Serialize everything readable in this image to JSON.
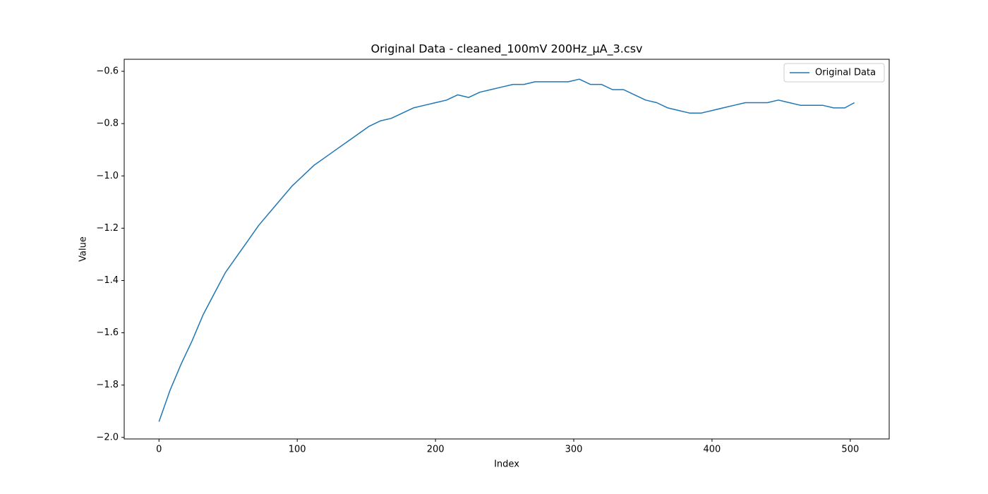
{
  "chart_data": {
    "type": "line",
    "title": "Original Data - cleaned_100mV 200Hz_µA_3.csv",
    "x_label": "Index",
    "y_label": "Value",
    "x": [
      0,
      8,
      16,
      24,
      32,
      40,
      48,
      56,
      64,
      72,
      80,
      88,
      96,
      104,
      112,
      120,
      128,
      136,
      144,
      152,
      160,
      168,
      176,
      184,
      192,
      200,
      208,
      216,
      224,
      232,
      240,
      248,
      256,
      264,
      272,
      280,
      288,
      296,
      304,
      312,
      320,
      328,
      336,
      344,
      352,
      360,
      368,
      376,
      384,
      392,
      400,
      408,
      416,
      424,
      432,
      440,
      448,
      456,
      464,
      472,
      480,
      488,
      496,
      503
    ],
    "series": [
      {
        "name": "Original Data",
        "color": "#1f77b4",
        "values": [
          -1.94,
          -1.82,
          -1.72,
          -1.63,
          -1.53,
          -1.45,
          -1.37,
          -1.31,
          -1.25,
          -1.19,
          -1.14,
          -1.09,
          -1.04,
          -1.0,
          -0.96,
          -0.93,
          -0.9,
          -0.87,
          -0.84,
          -0.81,
          -0.79,
          -0.78,
          -0.76,
          -0.74,
          -0.73,
          -0.72,
          -0.71,
          -0.69,
          -0.7,
          -0.68,
          -0.67,
          -0.66,
          -0.65,
          -0.65,
          -0.64,
          -0.64,
          -0.64,
          -0.64,
          -0.63,
          -0.65,
          -0.65,
          -0.67,
          -0.67,
          -0.69,
          -0.71,
          -0.72,
          -0.74,
          -0.75,
          -0.76,
          -0.76,
          -0.75,
          -0.74,
          -0.73,
          -0.72,
          -0.72,
          -0.72,
          -0.71,
          -0.72,
          -0.73,
          -0.73,
          -0.73,
          -0.74,
          -0.74,
          -0.72
        ]
      }
    ],
    "xlim": [
      -25.15,
      528.15
    ],
    "xticks": [
      0,
      100,
      200,
      300,
      400,
      500
    ],
    "ylim": [
      -2.006,
      -0.554
    ],
    "yticks": [
      {
        "value": -2.0,
        "label": "−2.0"
      },
      {
        "value": -1.8,
        "label": "−1.8"
      },
      {
        "value": -1.6,
        "label": "−1.6"
      },
      {
        "value": -1.4,
        "label": "−1.4"
      },
      {
        "value": -1.2,
        "label": "−1.2"
      },
      {
        "value": -1.0,
        "label": "−1.0"
      },
      {
        "value": -0.8,
        "label": "−0.8"
      },
      {
        "value": -0.6,
        "label": "−0.6"
      }
    ],
    "grid": false,
    "legend": "upper right"
  }
}
